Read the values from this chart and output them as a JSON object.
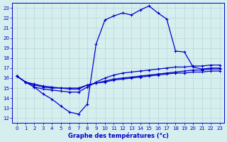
{
  "title": "Graphe des températures (°c)",
  "bg_color": "#d6eeee",
  "grid_color": "#b8d8d8",
  "line_color": "#0000cc",
  "xlim": [
    -0.5,
    23.5
  ],
  "ylim": [
    11.5,
    23.5
  ],
  "xticks": [
    0,
    1,
    2,
    3,
    4,
    5,
    6,
    7,
    8,
    9,
    10,
    11,
    12,
    13,
    14,
    15,
    16,
    17,
    18,
    19,
    20,
    21,
    22,
    23
  ],
  "yticks": [
    12,
    13,
    14,
    15,
    16,
    17,
    18,
    19,
    20,
    21,
    22,
    23
  ],
  "curve1_x": [
    0,
    1,
    2,
    3,
    4,
    5,
    6,
    7,
    8,
    9,
    10,
    11,
    12,
    13,
    14,
    15,
    16,
    17,
    18,
    19,
    20,
    21,
    22,
    23
  ],
  "curve1_y": [
    16.2,
    15.6,
    15.1,
    14.4,
    13.9,
    13.2,
    12.6,
    12.4,
    13.4,
    19.4,
    21.8,
    22.2,
    22.5,
    22.3,
    22.8,
    23.2,
    22.5,
    21.9,
    18.7,
    18.6,
    17.1,
    16.9,
    17.0,
    17.0
  ],
  "curve2_x": [
    0,
    1,
    2,
    3,
    4,
    5,
    6,
    7,
    8,
    9,
    10,
    11,
    12,
    13,
    14,
    15,
    16,
    17,
    18,
    19,
    20,
    21,
    22,
    23
  ],
  "curve2_y": [
    16.2,
    15.6,
    15.1,
    14.9,
    14.8,
    14.7,
    14.6,
    14.6,
    15.1,
    15.6,
    16.0,
    16.3,
    16.5,
    16.6,
    16.7,
    16.8,
    16.9,
    17.0,
    17.1,
    17.1,
    17.2,
    17.2,
    17.3,
    17.3
  ],
  "curve3_x": [
    0,
    1,
    2,
    3,
    4,
    5,
    6,
    7,
    8,
    9,
    10,
    11,
    12,
    13,
    14,
    15,
    16,
    17,
    18,
    19,
    20,
    21,
    22,
    23
  ],
  "curve3_y": [
    16.2,
    15.6,
    15.3,
    15.1,
    15.0,
    15.0,
    14.9,
    14.9,
    15.3,
    15.5,
    15.7,
    15.9,
    16.0,
    16.1,
    16.2,
    16.3,
    16.4,
    16.5,
    16.6,
    16.7,
    16.8,
    16.8,
    16.9,
    16.9
  ],
  "curve4_x": [
    0,
    1,
    2,
    3,
    4,
    5,
    6,
    7,
    8,
    9,
    10,
    11,
    12,
    13,
    14,
    15,
    16,
    17,
    18,
    19,
    20,
    21,
    22,
    23
  ],
  "curve4_y": [
    16.2,
    15.6,
    15.4,
    15.2,
    15.1,
    15.0,
    15.0,
    15.0,
    15.3,
    15.5,
    15.6,
    15.8,
    15.9,
    16.0,
    16.1,
    16.2,
    16.3,
    16.4,
    16.5,
    16.5,
    16.6,
    16.6,
    16.7,
    16.7
  ]
}
